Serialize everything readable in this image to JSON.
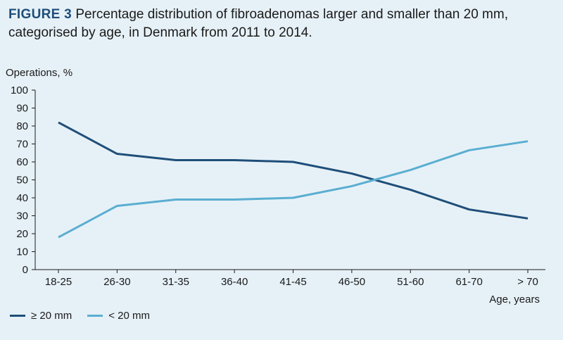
{
  "title": {
    "label": "FIGURE 3",
    "text": "Percentage distribution of fibroadenomas larger and smaller than 20 mm, categorised by age, in Denmark from 2011 to 2014."
  },
  "chart_data": {
    "type": "line",
    "ylabel": "Operations, %",
    "xlabel": "Age, years",
    "ylim": [
      0,
      100
    ],
    "yticks": [
      0,
      10,
      20,
      30,
      40,
      50,
      60,
      70,
      80,
      90,
      100
    ],
    "categories": [
      "18-25",
      "26-30",
      "31-35",
      "36-40",
      "41-45",
      "46-50",
      "51-60",
      "61-70",
      "> 70"
    ],
    "grid": false,
    "legend_position": "bottom-left",
    "series": [
      {
        "name": "≥ 20 mm",
        "color": "#1f4e79",
        "values": [
          82,
          64.5,
          61,
          61,
          60,
          53.5,
          44.5,
          33.5,
          28.5
        ]
      },
      {
        "name": "< 20 mm",
        "color": "#5aaed1",
        "values": [
          18,
          35.5,
          39,
          39,
          40,
          46.5,
          55.5,
          66.5,
          71.5
        ]
      }
    ]
  }
}
